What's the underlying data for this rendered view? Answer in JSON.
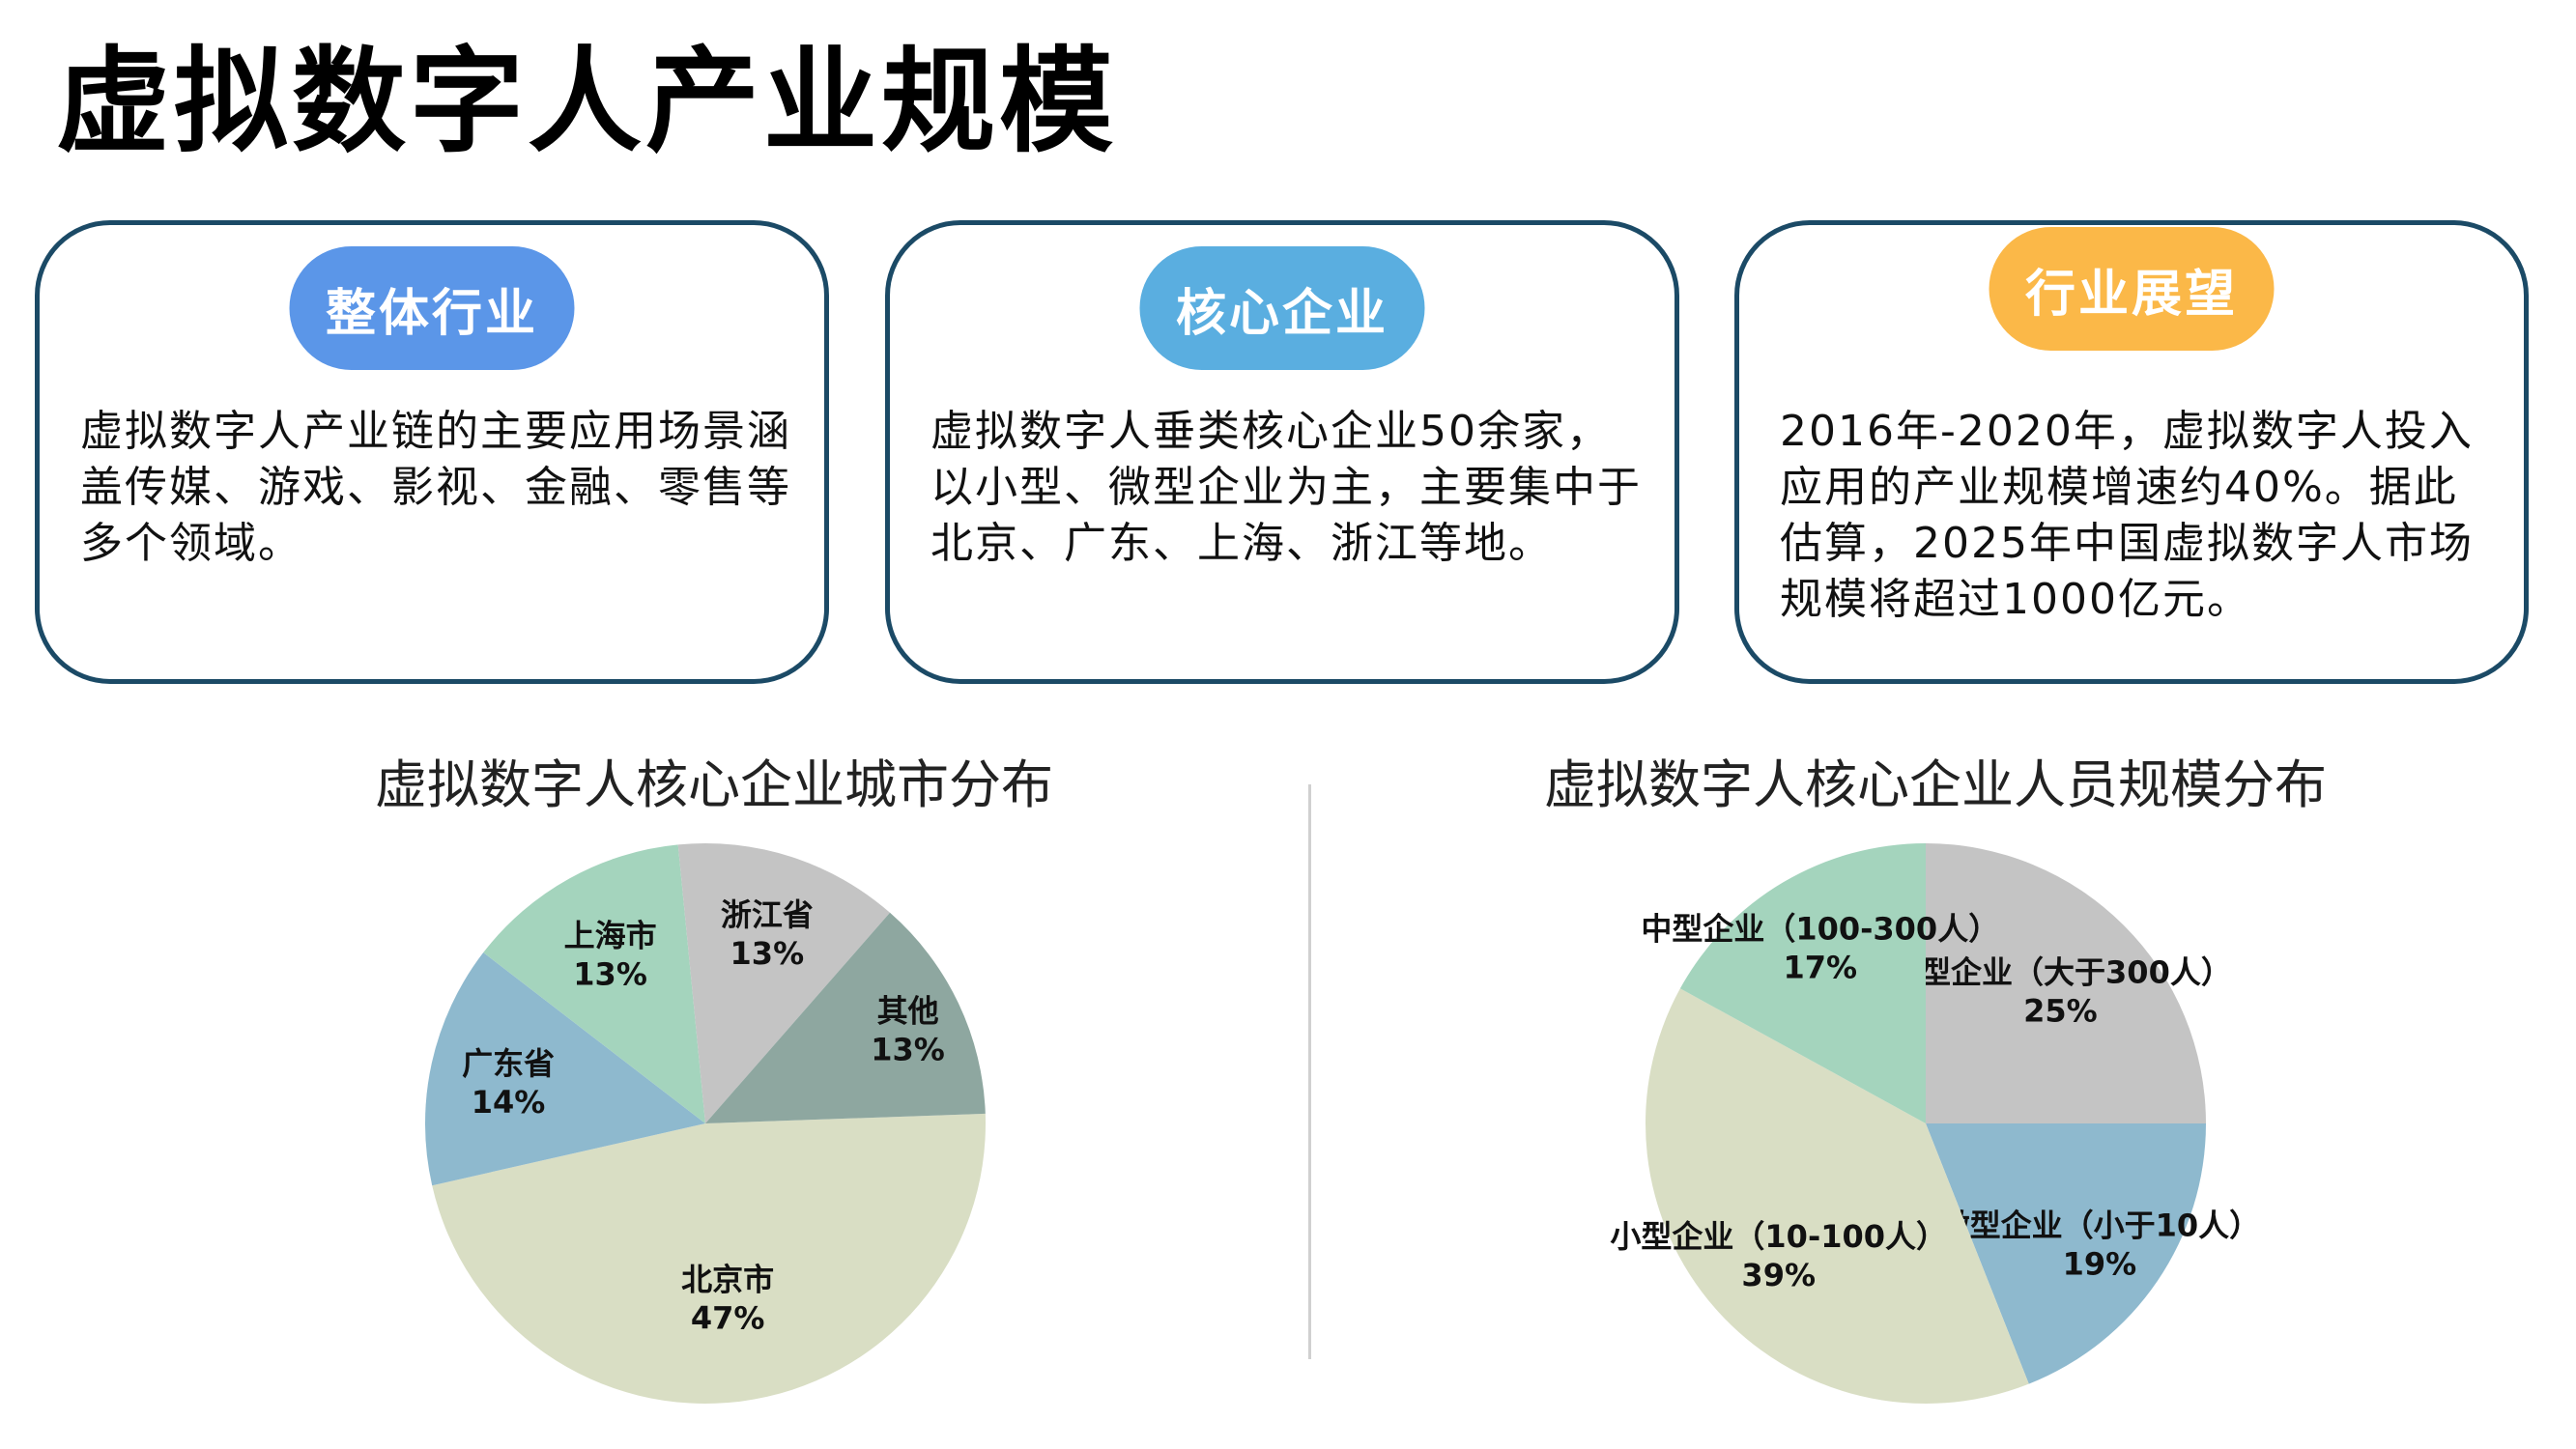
{
  "page_title": "虚拟数字人产业规模",
  "cards": [
    {
      "tag": "整体行业",
      "tag_color": "#5b96e8",
      "body": "虚拟数字人产业链的主要应用场景涵盖传媒、游戏、影视、金融、零售等多个领域。"
    },
    {
      "tag": "核心企业",
      "tag_color": "#5aaee0",
      "body": "虚拟数字人垂类核心企业50余家，以小型、微型企业为主，主要集中于北京、广东、上海、浙江等地。"
    },
    {
      "tag": "行业展望",
      "tag_color": "#fbb848",
      "body": "2016年-2020年，虚拟数字人投入应用的产业规模增速约40%。据此估算，2025年中国虚拟数字人市场规模将超过1000亿元。"
    }
  ],
  "chart_data": [
    {
      "type": "pie",
      "title": "虚拟数字人核心企业城市分布",
      "slices": [
        {
          "label": "北京市",
          "value": 47,
          "display": "47%",
          "color": "#d9dec4"
        },
        {
          "label": "广东省",
          "value": 14,
          "display": "14%",
          "color": "#8eb9ce"
        },
        {
          "label": "上海市",
          "value": 13,
          "display": "13%",
          "color": "#a4d4bd"
        },
        {
          "label": "浙江省",
          "value": 13,
          "display": "13%",
          "color": "#c4c4c4"
        },
        {
          "label": "其他",
          "value": 13,
          "display": "13%",
          "color": "#8ea7a0"
        }
      ]
    },
    {
      "type": "pie",
      "title": "虚拟数字人核心企业人员规模分布",
      "slices": [
        {
          "label": "大型企业（大于300人）",
          "value": 25,
          "display": "25%",
          "color": "#c4c4c4"
        },
        {
          "label": "微型企业（小于10人）",
          "value": 19,
          "display": "19%",
          "color": "#8eb9ce"
        },
        {
          "label": "小型企业（10-100人）",
          "value": 39,
          "display": "39%",
          "color": "#d9dec4"
        },
        {
          "label": "中型企业（100-300人）",
          "value": 17,
          "display": "17%",
          "color": "#a4d4bd"
        }
      ]
    }
  ]
}
